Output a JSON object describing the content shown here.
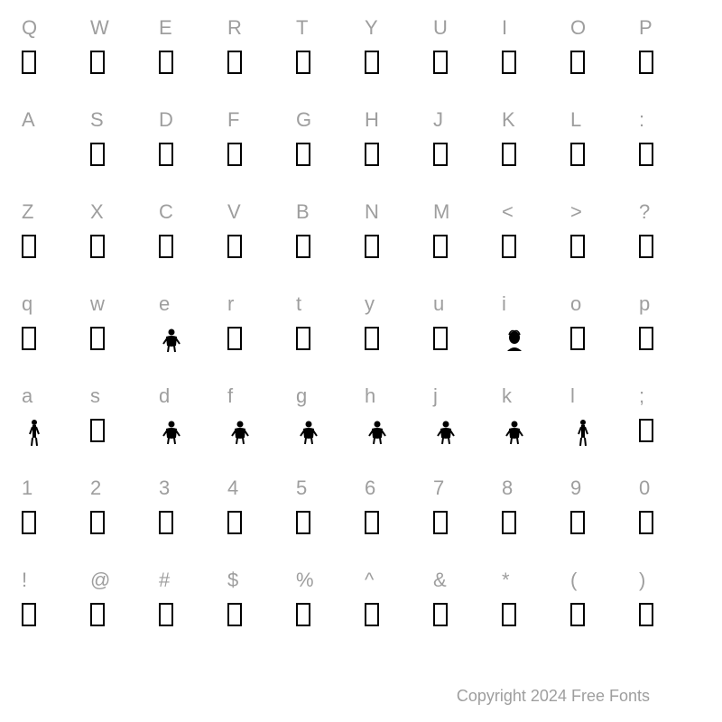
{
  "grid": {
    "columns": 10,
    "rows": 7,
    "label_color": "#9e9e9e",
    "label_fontsize": 22,
    "glyph_border_color": "#000000",
    "background_color": "#ffffff",
    "cells": [
      [
        {
          "key": "Q",
          "glyph": "box"
        },
        {
          "key": "W",
          "glyph": "box"
        },
        {
          "key": "E",
          "glyph": "box"
        },
        {
          "key": "R",
          "glyph": "box"
        },
        {
          "key": "T",
          "glyph": "box"
        },
        {
          "key": "Y",
          "glyph": "box"
        },
        {
          "key": "U",
          "glyph": "box"
        },
        {
          "key": "I",
          "glyph": "box"
        },
        {
          "key": "O",
          "glyph": "box"
        },
        {
          "key": "P",
          "glyph": "box"
        }
      ],
      [
        {
          "key": "A",
          "glyph": "blank"
        },
        {
          "key": "S",
          "glyph": "box"
        },
        {
          "key": "D",
          "glyph": "box"
        },
        {
          "key": "F",
          "glyph": "box"
        },
        {
          "key": "G",
          "glyph": "box"
        },
        {
          "key": "H",
          "glyph": "box"
        },
        {
          "key": "J",
          "glyph": "box"
        },
        {
          "key": "K",
          "glyph": "box"
        },
        {
          "key": "L",
          "glyph": "box"
        },
        {
          "key": ":",
          "glyph": "box"
        }
      ],
      [
        {
          "key": "Z",
          "glyph": "box"
        },
        {
          "key": "X",
          "glyph": "box"
        },
        {
          "key": "C",
          "glyph": "box"
        },
        {
          "key": "V",
          "glyph": "box"
        },
        {
          "key": "B",
          "glyph": "box"
        },
        {
          "key": "N",
          "glyph": "box"
        },
        {
          "key": "M",
          "glyph": "box"
        },
        {
          "key": "<",
          "glyph": "box"
        },
        {
          "key": ">",
          "glyph": "box"
        },
        {
          "key": "?",
          "glyph": "box"
        }
      ],
      [
        {
          "key": "q",
          "glyph": "box"
        },
        {
          "key": "w",
          "glyph": "box"
        },
        {
          "key": "e",
          "glyph": "figure"
        },
        {
          "key": "r",
          "glyph": "box"
        },
        {
          "key": "t",
          "glyph": "box"
        },
        {
          "key": "y",
          "glyph": "box"
        },
        {
          "key": "u",
          "glyph": "box"
        },
        {
          "key": "i",
          "glyph": "portrait"
        },
        {
          "key": "o",
          "glyph": "box"
        },
        {
          "key": "p",
          "glyph": "box"
        }
      ],
      [
        {
          "key": "a",
          "glyph": "tall-figure"
        },
        {
          "key": "s",
          "glyph": "box"
        },
        {
          "key": "d",
          "glyph": "figure"
        },
        {
          "key": "f",
          "glyph": "figure"
        },
        {
          "key": "g",
          "glyph": "figure"
        },
        {
          "key": "h",
          "glyph": "figure"
        },
        {
          "key": "j",
          "glyph": "figure"
        },
        {
          "key": "k",
          "glyph": "figure"
        },
        {
          "key": "l",
          "glyph": "tall-figure"
        },
        {
          "key": ";",
          "glyph": "box"
        }
      ],
      [
        {
          "key": "1",
          "glyph": "box"
        },
        {
          "key": "2",
          "glyph": "box"
        },
        {
          "key": "3",
          "glyph": "box"
        },
        {
          "key": "4",
          "glyph": "box"
        },
        {
          "key": "5",
          "glyph": "box"
        },
        {
          "key": "6",
          "glyph": "box"
        },
        {
          "key": "7",
          "glyph": "box"
        },
        {
          "key": "8",
          "glyph": "box"
        },
        {
          "key": "9",
          "glyph": "box"
        },
        {
          "key": "0",
          "glyph": "box"
        }
      ],
      [
        {
          "key": "!",
          "glyph": "box"
        },
        {
          "key": "@",
          "glyph": "box"
        },
        {
          "key": "#",
          "glyph": "box"
        },
        {
          "key": "$",
          "glyph": "box"
        },
        {
          "key": "%",
          "glyph": "box"
        },
        {
          "key": "^",
          "glyph": "box"
        },
        {
          "key": "&",
          "glyph": "box"
        },
        {
          "key": "*",
          "glyph": "box"
        },
        {
          "key": "(",
          "glyph": "box"
        },
        {
          "key": ")",
          "glyph": "box"
        }
      ]
    ]
  },
  "footer_text": "Copyright 2024 Free Fonts"
}
